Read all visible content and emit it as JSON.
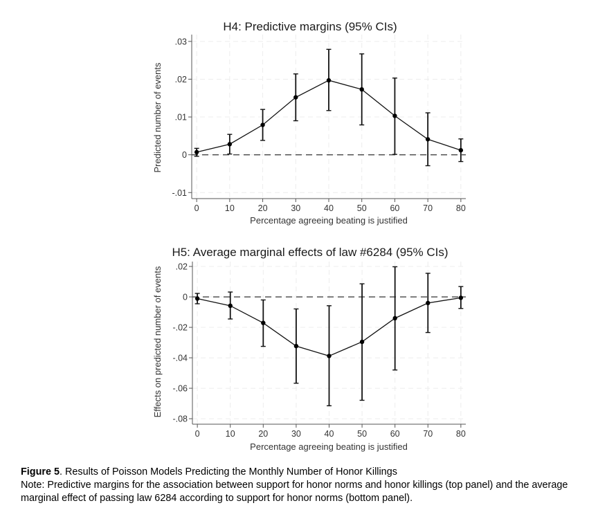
{
  "chart_data": [
    {
      "type": "line",
      "title": "H4: Predictive margins (95% CIs)",
      "xlabel": "Percentage agreeing beating is justified",
      "ylabel": "Predicted number of events",
      "x": [
        0,
        10,
        20,
        30,
        40,
        50,
        60,
        70,
        80
      ],
      "xticks": [
        0,
        10,
        20,
        30,
        40,
        50,
        60,
        70,
        80
      ],
      "xtick_labels": [
        "0",
        "10",
        "20",
        "30",
        "40",
        "50",
        "60",
        "70",
        "80"
      ],
      "yticks": [
        -0.01,
        0,
        0.01,
        0.02,
        0.03
      ],
      "ytick_labels": [
        "-.01",
        "0",
        ".01",
        ".02",
        ".03"
      ],
      "xlim": [
        -1.5,
        81.5
      ],
      "ylim": [
        -0.0116,
        0.0318
      ],
      "grid": true,
      "reference_line": 0,
      "series": [
        {
          "name": "Predictive margin",
          "values": [
            0.0007,
            0.0028,
            0.0079,
            0.0152,
            0.0197,
            0.0173,
            0.0103,
            0.0041,
            0.0012
          ],
          "ci_lower": [
            -0.0004,
            0.0002,
            0.0038,
            0.009,
            0.0117,
            0.0079,
            0.0001,
            -0.0029,
            -0.0018
          ],
          "ci_upper": [
            0.0017,
            0.0054,
            0.012,
            0.0214,
            0.0279,
            0.0267,
            0.0203,
            0.0111,
            0.0042
          ]
        }
      ]
    },
    {
      "type": "line",
      "title": "H5: Average marginal effects of law #6284 (95% CIs)",
      "xlabel": "Percentage agreeing beating is justified",
      "ylabel": "Effects on predicted number of events",
      "x": [
        0,
        10,
        20,
        30,
        40,
        50,
        60,
        70,
        80
      ],
      "xticks": [
        0,
        10,
        20,
        30,
        40,
        50,
        60,
        70,
        80
      ],
      "xtick_labels": [
        "0",
        "10",
        "20",
        "30",
        "40",
        "50",
        "60",
        "70",
        "80"
      ],
      "yticks": [
        -0.08,
        -0.06,
        -0.04,
        -0.02,
        0,
        0.02
      ],
      "ytick_labels": [
        "-.08",
        "-.06",
        "-.04",
        "-.02",
        "0",
        ".02"
      ],
      "xlim": [
        -1.5,
        81.5
      ],
      "ylim": [
        -0.0836,
        0.0232
      ],
      "grid": true,
      "reference_line": 0,
      "series": [
        {
          "name": "Average marginal effect",
          "values": [
            -0.0011,
            -0.0058,
            -0.0171,
            -0.0323,
            -0.0388,
            -0.0295,
            -0.014,
            -0.004,
            -0.0006
          ],
          "ci_lower": [
            -0.0045,
            -0.0145,
            -0.0325,
            -0.0567,
            -0.0715,
            -0.0679,
            -0.048,
            -0.0234,
            -0.0076
          ],
          "ci_upper": [
            0.0023,
            0.0032,
            -0.002,
            -0.0079,
            -0.0058,
            0.0086,
            0.0198,
            0.0155,
            0.0068
          ]
        }
      ]
    }
  ],
  "caption": {
    "figure_label": "Figure 5",
    "figure_title": ". Results of Poisson Models Predicting the Monthly Number of Honor Killings",
    "note": "Note: Predictive margins for the association between support for honor norms and honor killings (top panel) and the average marginal effect of passing law 6284 according to support for honor norms (bottom panel)."
  }
}
